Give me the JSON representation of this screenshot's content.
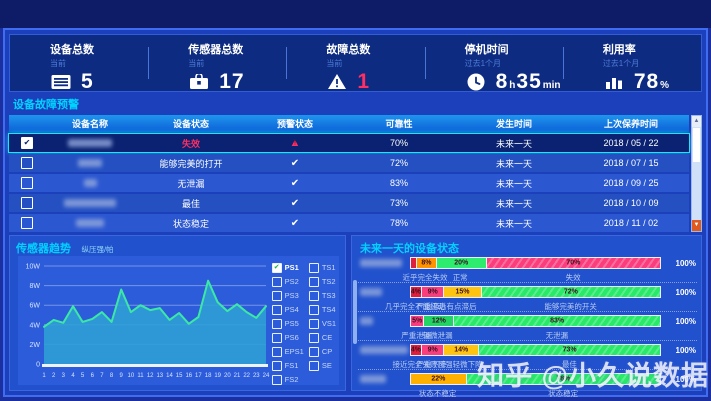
{
  "kpis": [
    {
      "title": "设备总数",
      "subtitle": "当前",
      "value": "5",
      "icon": "device-list-icon"
    },
    {
      "title": "传感器总数",
      "subtitle": "当前",
      "value": "17",
      "icon": "sensor-icon"
    },
    {
      "title": "故障总数",
      "subtitle": "当前",
      "value": "1",
      "value_color": "#ff2e63",
      "icon": "warning-icon"
    },
    {
      "title": "停机时间",
      "subtitle": "过去1个月",
      "value_main": "8",
      "unit1": "h",
      "value2": "35",
      "unit2": "min",
      "icon": "clock-icon"
    },
    {
      "title": "利用率",
      "subtitle": "过去1个月",
      "value_main": "78",
      "unit1": "%",
      "icon": "bar-chart-icon"
    }
  ],
  "alert_section": {
    "title": "设备故障预警",
    "columns": [
      "设备名称",
      "设备状态",
      "预警状态",
      "可靠性",
      "发生时间",
      "上次保养时间"
    ],
    "rows": [
      {
        "checked": true,
        "selected": true,
        "name_redacted_width": 44,
        "status": "失效",
        "status_color": "#ff2e63",
        "warning": "triangle",
        "reliability": "70%",
        "occur_time": "未来一天",
        "last_maintenance": "2018 / 05 / 22"
      },
      {
        "checked": false,
        "selected": false,
        "name_redacted_width": 24,
        "status": "能够完美的打开",
        "warning": "check",
        "reliability": "72%",
        "occur_time": "未来一天",
        "last_maintenance": "2018 / 07 / 15"
      },
      {
        "checked": false,
        "selected": false,
        "name_redacted_width": 13,
        "status": "无泄漏",
        "warning": "check",
        "reliability": "83%",
        "occur_time": "未来一天",
        "last_maintenance": "2018 / 09 / 25"
      },
      {
        "checked": false,
        "selected": false,
        "name_redacted_width": 52,
        "status": "最佳",
        "warning": "check",
        "reliability": "73%",
        "occur_time": "未来一天",
        "last_maintenance": "2018 / 10 / 09"
      },
      {
        "checked": false,
        "selected": false,
        "name_redacted_width": 28,
        "status": "状态稳定",
        "warning": "check",
        "reliability": "78%",
        "occur_time": "未来一天",
        "last_maintenance": "2018 / 11 / 02"
      }
    ]
  },
  "chart_data": [
    {
      "type": "line",
      "title": "传感器趋势",
      "subtitle": "纵压强/帕",
      "x": [
        1,
        2,
        3,
        4,
        5,
        6,
        7,
        8,
        9,
        10,
        11,
        12,
        13,
        14,
        15,
        16,
        17,
        18,
        19,
        20,
        21,
        22,
        23,
        24
      ],
      "series": [
        {
          "name": "PS1",
          "color": "#3ce9a4",
          "values": [
            3.8,
            4.5,
            4.2,
            5.9,
            4.3,
            4.6,
            5.3,
            4.3,
            7.6,
            5.3,
            6.0,
            5.5,
            5.7,
            4.5,
            5.2,
            4.1,
            4.8,
            8.5,
            6.3,
            5.4,
            6.1,
            5.3,
            4.7,
            5.9
          ]
        }
      ],
      "area_fill_color": "#2f9ed6",
      "ylim": [
        0,
        10
      ],
      "y_ticks": [
        {
          "label": "10W",
          "value": 10
        },
        {
          "label": "8W",
          "value": 8
        },
        {
          "label": "6W",
          "value": 6
        },
        {
          "label": "4W",
          "value": 4
        },
        {
          "label": "2W",
          "value": 2
        },
        {
          "label": "0",
          "value": 0
        }
      ],
      "grid": true,
      "legend_position": "right",
      "legend_col1": [
        {
          "label": "PS1",
          "checked": true
        },
        {
          "label": "PS2",
          "checked": false
        },
        {
          "label": "PS3",
          "checked": false
        },
        {
          "label": "PS4",
          "checked": false
        },
        {
          "label": "PS5",
          "checked": false
        },
        {
          "label": "PS6",
          "checked": false
        },
        {
          "label": "EPS1",
          "checked": false
        },
        {
          "label": "FS1",
          "checked": false
        },
        {
          "label": "FS2",
          "checked": false
        }
      ],
      "legend_col2": [
        {
          "label": "TS1",
          "checked": false
        },
        {
          "label": "TS2",
          "checked": false
        },
        {
          "label": "TS3",
          "checked": false
        },
        {
          "label": "TS4",
          "checked": false
        },
        {
          "label": "VS1",
          "checked": false
        },
        {
          "label": "CE",
          "checked": false
        },
        {
          "label": "CP",
          "checked": false
        },
        {
          "label": "SE",
          "checked": false
        }
      ]
    },
    {
      "type": "bar",
      "stacked": true,
      "orientation": "horizontal",
      "title": "未来一天的设备状态",
      "bars": [
        {
          "name_redacted_width": 42,
          "total_label": "100%",
          "segments": [
            {
              "value": 2,
              "label": "",
              "color": "#e01f3d",
              "state": ""
            },
            {
              "value": 8,
              "label": "8%",
              "color": "#ff9300",
              "state": "近乎完全失效"
            },
            {
              "value": 20,
              "label": "20%",
              "color": "#2dec6e",
              "state": "正常"
            },
            {
              "value": 70,
              "label": "70%",
              "color": "#fa3d7c",
              "color2": "#ff6f9e",
              "state": "失效"
            }
          ]
        },
        {
          "name_redacted_width": 22,
          "total_label": "100%",
          "segments": [
            {
              "value": 4,
              "label": "4%",
              "color": "#e01f3d",
              "state": "几乎完全不能扭动"
            },
            {
              "value": 9,
              "label": "9%",
              "color": "#fa3d7c",
              "state": "严重滞后"
            },
            {
              "value": 15,
              "label": "15%",
              "color": "#ffc410",
              "state": "有点滞后"
            },
            {
              "value": 72,
              "label": "72%",
              "color": "#2ae868",
              "color2": "#57f08c",
              "state": "能够完美的开关"
            }
          ]
        },
        {
          "name_redacted_width": 13,
          "total_label": "100%",
          "segments": [
            {
              "value": 5,
              "label": "5%",
              "color": "#fa3d7c",
              "state": "严重泄漏"
            },
            {
              "value": 12,
              "label": "12%",
              "color": "#23d465",
              "state": "轻微泄漏"
            },
            {
              "value": 83,
              "label": "83%",
              "color": "#2ae868",
              "color2": "#57f08c",
              "state": "无泄漏"
            }
          ]
        },
        {
          "name_redacted_width": 48,
          "total_label": "100%",
          "segments": [
            {
              "value": 4,
              "label": "4%",
              "color": "#e01f3d",
              "state": "接近完全失败"
            },
            {
              "value": 9,
              "label": "9%",
              "color": "#fa3d7c",
              "state": "严重下降"
            },
            {
              "value": 14,
              "label": "14%",
              "color": "#ffc410",
              "state": "压强轻微下降"
            },
            {
              "value": 73,
              "label": "73%",
              "color": "#2ae868",
              "color2": "#57f08c",
              "state": "最佳"
            }
          ]
        },
        {
          "name_redacted_width": 26,
          "total_label": "100%",
          "segments": [
            {
              "value": 22,
              "label": "22%",
              "color": "#ffb000",
              "state": "状态不稳定"
            },
            {
              "value": 78,
              "label": "78%",
              "color": "#2ae868",
              "color2": "#57f08c",
              "state": "状态稳定"
            }
          ]
        }
      ]
    }
  ],
  "watermark": "知乎 @小久说数据",
  "glyphs": {
    "check": "✔",
    "triangle": "▲",
    "exclamation": "!",
    "scroll_up": "▲",
    "scroll_down": "▼"
  },
  "colors": {
    "accent_cyan": "#00d2ff",
    "fault_pink": "#ff2e63",
    "line_green": "#3ce9a4",
    "area_teal": "#2f9ed6",
    "panel_blue": "#2151cc",
    "kpi_navy": "#0d2b80",
    "header_blue": "#1e96ee",
    "selected_border": "#1ae8f8"
  }
}
